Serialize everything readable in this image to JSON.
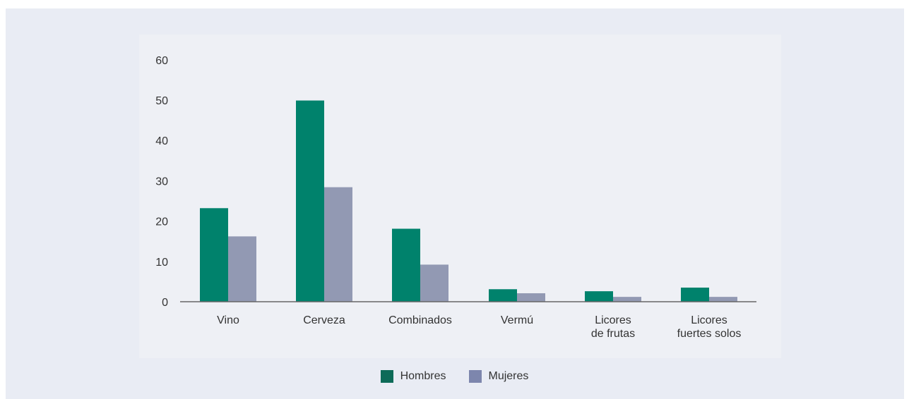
{
  "chart_data": {
    "type": "bar",
    "title": "",
    "xlabel": "",
    "ylabel": "",
    "ylim": [
      0,
      60
    ],
    "yticks": [
      0,
      10,
      20,
      30,
      40,
      50,
      60
    ],
    "grid": false,
    "legend_position": "bottom-center",
    "categories": [
      "Vino",
      "Cerveza",
      "Combinados",
      "Vermú",
      "Licores de frutas",
      "Licores fuertes solos"
    ],
    "category_lines": [
      [
        "Vino"
      ],
      [
        "Cerveza"
      ],
      [
        "Combinados"
      ],
      [
        "Vermú"
      ],
      [
        "Licores",
        "de frutas"
      ],
      [
        "Licores",
        "fuertes solos"
      ]
    ],
    "series": [
      {
        "name": "Hombres",
        "color": "#00826c",
        "values": [
          23.2,
          49.9,
          18.1,
          3.1,
          2.6,
          3.5
        ]
      },
      {
        "name": "Mujeres",
        "color": "#9299b3",
        "values": [
          16.2,
          28.4,
          9.2,
          2.1,
          1.2,
          1.2
        ]
      }
    ]
  },
  "legend": {
    "hombres_label": "Hombres",
    "mujeres_label": "Mujeres",
    "hombres_color": "#0d6b58",
    "mujeres_color": "#7d86ad"
  }
}
